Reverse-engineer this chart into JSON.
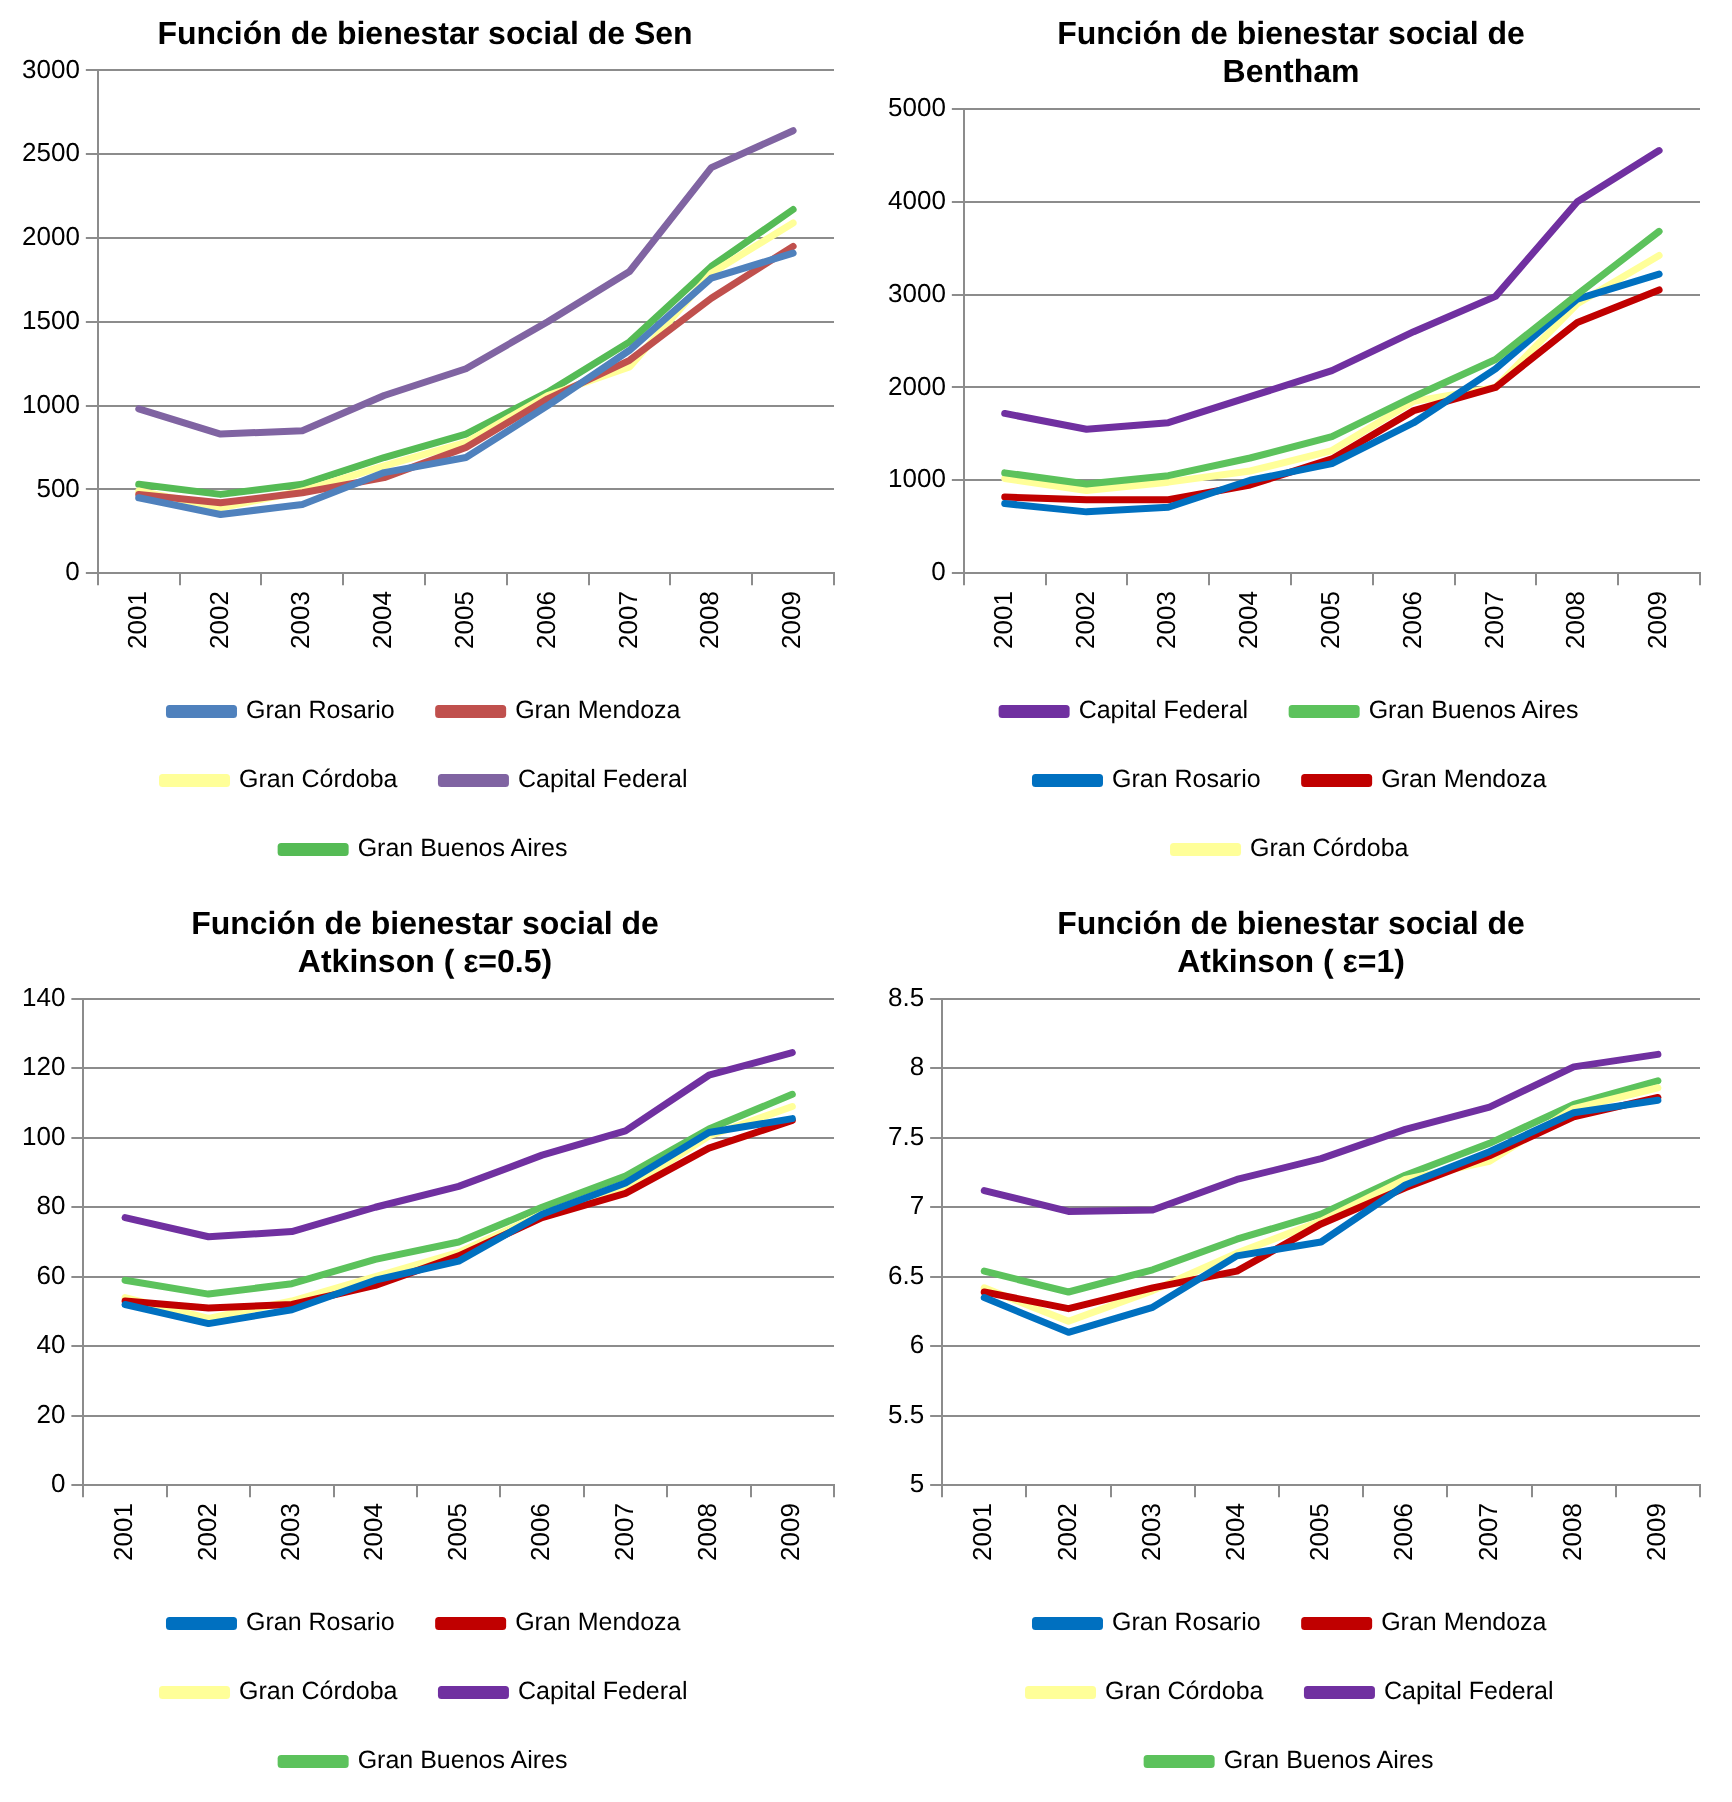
{
  "chart_data": [
    {
      "type": "line",
      "title": "Función de bienestar social de Sen",
      "categories": [
        "2001",
        "2002",
        "2003",
        "2004",
        "2005",
        "2006",
        "2007",
        "2008",
        "2009"
      ],
      "series": [
        {
          "name": "Gran Rosario",
          "color": "#4f81bd",
          "values": [
            450,
            350,
            410,
            600,
            690,
            1000,
            1330,
            1760,
            1910
          ]
        },
        {
          "name": "Gran Mendoza",
          "color": "#c0504d",
          "values": [
            470,
            420,
            480,
            570,
            750,
            1040,
            1270,
            1640,
            1950
          ]
        },
        {
          "name": "Gran Córdoba",
          "color": "#ffff99",
          "values": [
            490,
            390,
            490,
            640,
            780,
            1060,
            1230,
            1790,
            2090
          ]
        },
        {
          "name": "Capital Federal",
          "color": "#8064a2",
          "values": [
            980,
            830,
            850,
            1060,
            1220,
            1500,
            1800,
            2420,
            2640
          ]
        },
        {
          "name": "Gran Buenos Aires",
          "color": "#55bb55",
          "values": [
            530,
            470,
            530,
            690,
            830,
            1080,
            1380,
            1830,
            2170
          ]
        }
      ],
      "ylim": [
        0,
        3000
      ],
      "yticks": [
        0,
        500,
        1000,
        1500,
        2000,
        2500,
        3000
      ],
      "grid": "y",
      "legend": "bottom",
      "marker": "none"
    },
    {
      "type": "line",
      "title": "Función de bienestar social de Bentham",
      "categories": [
        "2001",
        "2002",
        "2003",
        "2004",
        "2005",
        "2006",
        "2007",
        "2008",
        "2009"
      ],
      "series": [
        {
          "name": "Capital Federal",
          "color": "#7030a0",
          "values": [
            1720,
            1550,
            1620,
            1900,
            2180,
            2600,
            2980,
            4000,
            4550
          ]
        },
        {
          "name": "Gran Buenos Aires",
          "color": "#5cc25c",
          "values": [
            1080,
            960,
            1050,
            1240,
            1470,
            1900,
            2300,
            3000,
            3680
          ]
        },
        {
          "name": "Gran Rosario",
          "color": "#0070c0",
          "values": [
            750,
            660,
            710,
            1000,
            1180,
            1620,
            2200,
            2950,
            3220
          ]
        },
        {
          "name": "Gran Mendoza",
          "color": "#c00000",
          "values": [
            820,
            790,
            790,
            950,
            1230,
            1750,
            2000,
            2700,
            3050
          ]
        },
        {
          "name": "Gran Córdoba",
          "color": "#ffff99",
          "values": [
            1020,
            890,
            980,
            1100,
            1320,
            1850,
            2000,
            2900,
            3420
          ]
        }
      ],
      "ylim": [
        0,
        5000
      ],
      "yticks": [
        0,
        1000,
        2000,
        3000,
        4000,
        5000
      ],
      "grid": "y",
      "legend": "bottom",
      "marker": "none"
    },
    {
      "type": "line",
      "title": "Función de bienestar social de Atkinson ( ε=0.5)",
      "categories": [
        "2001",
        "2002",
        "2003",
        "2004",
        "2005",
        "2006",
        "2007",
        "2008",
        "2009"
      ],
      "series": [
        {
          "name": "Gran Rosario",
          "color": "#0070c0",
          "values": [
            52,
            46.5,
            50.5,
            59,
            64.5,
            78,
            87,
            101.5,
            105.5
          ]
        },
        {
          "name": "Gran Mendoza",
          "color": "#c00000",
          "values": [
            53,
            51,
            52,
            57.5,
            66,
            77,
            84,
            97,
            105
          ]
        },
        {
          "name": "Gran Córdoba",
          "color": "#ffff99",
          "values": [
            54,
            48,
            53,
            60,
            67,
            78,
            85,
            100.5,
            109
          ]
        },
        {
          "name": "Capital Federal",
          "color": "#7030a0",
          "values": [
            77,
            71.5,
            73,
            80,
            86,
            95,
            102,
            118,
            124.5
          ]
        },
        {
          "name": "Gran Buenos Aires",
          "color": "#5cc25c",
          "values": [
            59,
            55,
            58,
            65,
            70,
            80,
            89,
            102.5,
            112.5
          ]
        }
      ],
      "ylim": [
        0,
        140
      ],
      "yticks": [
        0,
        20,
        40,
        60,
        80,
        100,
        120,
        140
      ],
      "grid": "y",
      "legend": "bottom",
      "marker": "none"
    },
    {
      "type": "line",
      "title": "Función de bienestar social de Atkinson ( ε=1)",
      "categories": [
        "2001",
        "2002",
        "2003",
        "2004",
        "2005",
        "2006",
        "2007",
        "2008",
        "2009"
      ],
      "series": [
        {
          "name": "Gran Rosario",
          "color": "#0070c0",
          "values": [
            6.35,
            6.1,
            6.28,
            6.65,
            6.75,
            7.16,
            7.4,
            7.68,
            7.77
          ]
        },
        {
          "name": "Gran Mendoza",
          "color": "#c00000",
          "values": [
            6.39,
            6.27,
            6.42,
            6.54,
            6.88,
            7.14,
            7.37,
            7.65,
            7.79
          ]
        },
        {
          "name": "Gran Córdoba",
          "color": "#ffff99",
          "values": [
            6.42,
            6.18,
            6.4,
            6.67,
            6.9,
            7.2,
            7.33,
            7.71,
            7.86
          ]
        },
        {
          "name": "Capital Federal",
          "color": "#7030a0",
          "values": [
            7.12,
            6.97,
            6.98,
            7.2,
            7.35,
            7.56,
            7.72,
            8.01,
            8.1
          ]
        },
        {
          "name": "Gran Buenos Aires",
          "color": "#5cc25c",
          "values": [
            6.54,
            6.39,
            6.55,
            6.77,
            6.95,
            7.23,
            7.46,
            7.74,
            7.91
          ]
        }
      ],
      "ylim": [
        5,
        8.5
      ],
      "yticks": [
        5,
        5.5,
        6,
        6.5,
        7,
        7.5,
        8,
        8.5
      ],
      "grid": "y",
      "legend": "bottom",
      "marker": "none"
    }
  ]
}
